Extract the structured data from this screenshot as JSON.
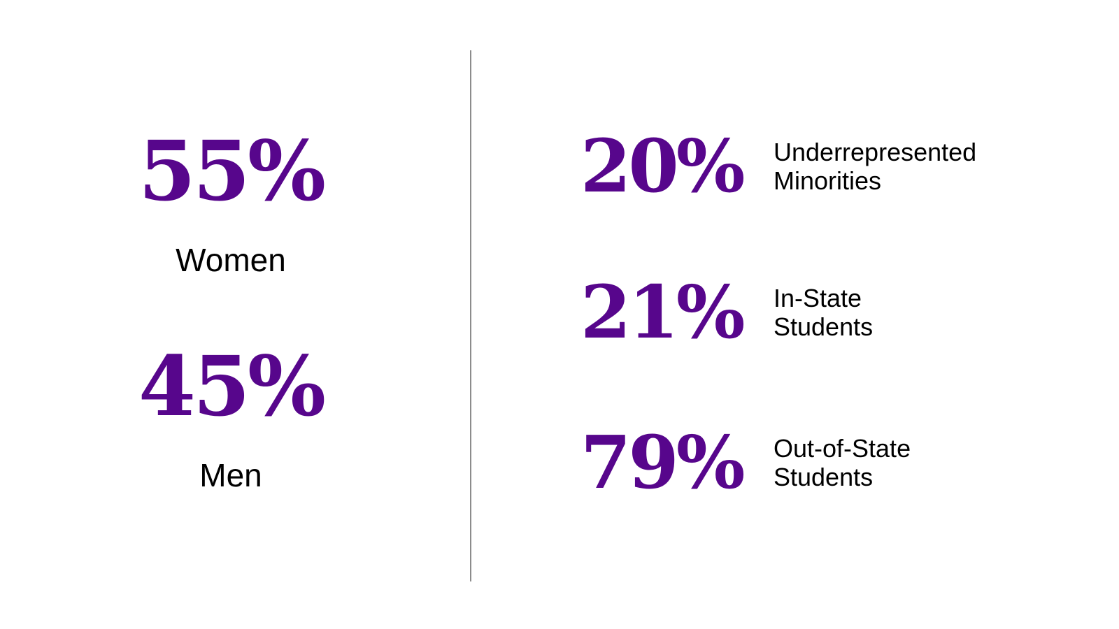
{
  "colors": {
    "accent": "#57068c",
    "text": "#000000",
    "divider": "#8c8c8c",
    "background": "#ffffff"
  },
  "gender": [
    {
      "value": "55%",
      "label": "Women"
    },
    {
      "value": "45%",
      "label": "Men"
    }
  ],
  "demographics": [
    {
      "value": "20%",
      "label_line1": "Underrepresented",
      "label_line2": "Minorities"
    },
    {
      "value": "21%",
      "label_line1": "In-State",
      "label_line2": "Students"
    },
    {
      "value": "79%",
      "label_line1": "Out-of-State",
      "label_line2": "Students"
    }
  ]
}
